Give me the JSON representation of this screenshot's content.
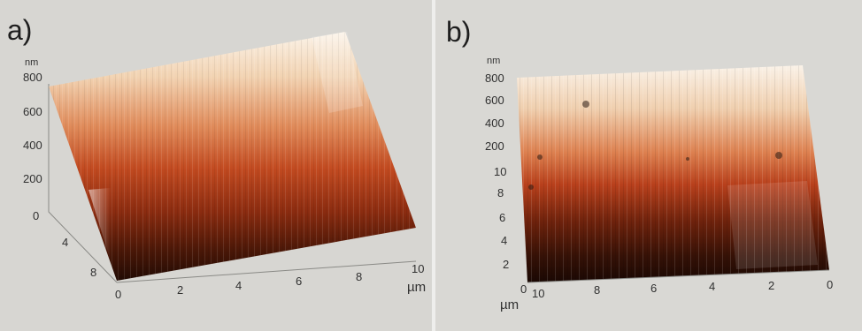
{
  "panels": [
    {
      "label": "a)",
      "z_axis": {
        "unit": "nm",
        "ticks": [
          "800",
          "600",
          "400",
          "200"
        ]
      },
      "y_axis": {
        "ticks": [
          "0",
          "4",
          "8"
        ]
      },
      "x_axis": {
        "ticks": [
          "0",
          "2",
          "4",
          "6",
          "8",
          "10"
        ],
        "unit": "µm"
      }
    },
    {
      "label": "b)",
      "z_axis": {
        "unit": "nm",
        "ticks": [
          "800",
          "600",
          "400",
          "200"
        ]
      },
      "y_axis": {
        "ticks": [
          "10",
          "8",
          "6",
          "4",
          "2"
        ]
      },
      "x_axis": {
        "ticks": [
          "10",
          "8",
          "6",
          "4",
          "2",
          "0"
        ],
        "unit": "µm",
        "origin": "0"
      }
    }
  ],
  "colors": {
    "surface_top": "#f6e8d6",
    "surface_mid": "#c3401a",
    "surface_bottom": "#1c0c06",
    "background": "#d9d8d4"
  }
}
